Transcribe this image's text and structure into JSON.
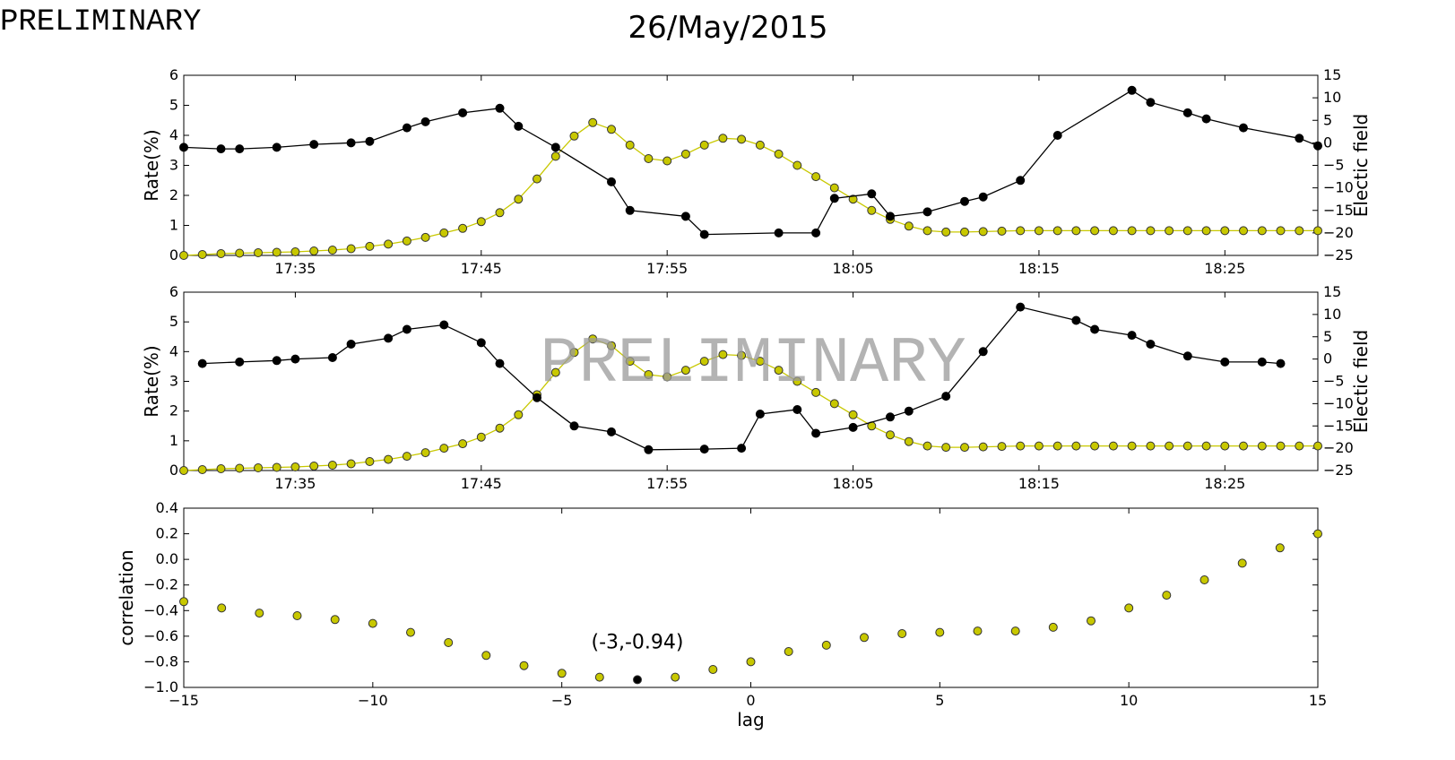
{
  "watermark": "PRELIMINARY",
  "figure_title": "26/May/2015",
  "colors": {
    "rate": "#000000",
    "efield": "#c8c800",
    "marker_edge": "#333333",
    "highlight": "#000000"
  },
  "chart_data": [
    {
      "type": "line",
      "panel": "top",
      "xlim": [
        "17:29",
        "18:30"
      ],
      "xticks": [
        "17:35",
        "17:45",
        "17:55",
        "18:05",
        "18:15",
        "18:25"
      ],
      "ylabel": "Rate(%)",
      "ylim": [
        0,
        6
      ],
      "yticks": [
        0,
        1,
        2,
        3,
        4,
        5,
        6
      ],
      "y2label": "Electic field",
      "y2lim": [
        -25,
        15
      ],
      "y2ticks": [
        -25,
        -20,
        -15,
        -10,
        -5,
        0,
        5,
        10,
        15
      ],
      "grid": false,
      "series": [
        {
          "axis": "left",
          "color": "#000000",
          "x": [
            "17:29",
            "17:31",
            "17:32",
            "17:34",
            "17:36",
            "17:38",
            "17:39",
            "17:41",
            "17:42",
            "17:44",
            "17:46",
            "17:47",
            "17:49",
            "17:52",
            "17:53",
            "17:56",
            "17:57",
            "18:01",
            "18:03",
            "18:04",
            "18:06",
            "18:07",
            "18:09",
            "18:11",
            "18:12",
            "18:14",
            "18:16",
            "18:20",
            "18:21",
            "18:23",
            "18:24",
            "18:26",
            "18:29",
            "18:30"
          ],
          "values": [
            3.6,
            3.55,
            3.55,
            3.6,
            3.7,
            3.75,
            3.8,
            4.25,
            4.45,
            4.75,
            4.9,
            4.3,
            3.6,
            2.45,
            1.5,
            1.3,
            0.7,
            0.75,
            0.75,
            1.9,
            2.05,
            1.3,
            1.45,
            1.8,
            1.95,
            2.5,
            4.0,
            5.5,
            5.1,
            4.75,
            4.55,
            4.25,
            3.9,
            3.65
          ]
        },
        {
          "axis": "right",
          "color": "#c8c800",
          "x": [
            "17:29",
            "17:30",
            "17:31",
            "17:32",
            "17:33",
            "17:34",
            "17:35",
            "17:36",
            "17:37",
            "17:38",
            "17:39",
            "17:40",
            "17:41",
            "17:42",
            "17:43",
            "17:44",
            "17:45",
            "17:46",
            "17:47",
            "17:48",
            "17:49",
            "17:50",
            "17:51",
            "17:52",
            "17:53",
            "17:54",
            "17:55",
            "17:56",
            "17:57",
            "17:58",
            "17:59",
            "18:00",
            "18:01",
            "18:02",
            "18:03",
            "18:04",
            "18:05",
            "18:06",
            "18:07",
            "18:08",
            "18:09",
            "18:10",
            "18:11",
            "18:12",
            "18:13",
            "18:14",
            "18:15",
            "18:16",
            "18:17",
            "18:18",
            "18:19",
            "18:20",
            "18:21",
            "18:22",
            "18:23",
            "18:24",
            "18:25",
            "18:26",
            "18:27",
            "18:28",
            "18:29",
            "18:30"
          ],
          "values": [
            -25,
            -24.8,
            -24.6,
            -24.5,
            -24.4,
            -24.3,
            -24.2,
            -24,
            -23.8,
            -23.5,
            -23,
            -22.5,
            -21.8,
            -21,
            -20,
            -19,
            -17.5,
            -15.5,
            -12.5,
            -8,
            -3,
            1.5,
            4.5,
            3,
            -0.5,
            -3.5,
            -4,
            -2.5,
            -0.5,
            1,
            0.8,
            -0.5,
            -2.5,
            -5,
            -7.5,
            -10,
            -12.5,
            -15,
            -17,
            -18.5,
            -19.5,
            -19.8,
            -19.8,
            -19.7,
            -19.6,
            -19.5,
            -19.5,
            -19.5,
            -19.5,
            -19.5,
            -19.5,
            -19.5,
            -19.5,
            -19.5,
            -19.5,
            -19.5,
            -19.5,
            -19.5,
            -19.5,
            -19.5,
            -19.5,
            -19.5
          ]
        }
      ]
    },
    {
      "type": "line",
      "panel": "middle",
      "xlim": [
        "17:29",
        "18:30"
      ],
      "xticks": [
        "17:35",
        "17:45",
        "17:55",
        "18:05",
        "18:15",
        "18:25"
      ],
      "ylabel": "Rate(%)",
      "ylim": [
        0,
        6
      ],
      "yticks": [
        0,
        1,
        2,
        3,
        4,
        5,
        6
      ],
      "y2label": "Electic field",
      "y2lim": [
        -25,
        15
      ],
      "y2ticks": [
        -25,
        -20,
        -15,
        -10,
        -5,
        0,
        5,
        10,
        15
      ],
      "grid": false,
      "series": [
        {
          "axis": "left",
          "color": "#000000",
          "x": [
            "17:30",
            "17:32",
            "17:34",
            "17:35",
            "17:37",
            "17:38",
            "17:40",
            "17:41",
            "17:43",
            "17:45",
            "17:46",
            "17:48",
            "17:50",
            "17:52",
            "17:54",
            "17:57",
            "17:59",
            "18:00",
            "18:02",
            "18:03",
            "18:05",
            "18:07",
            "18:08",
            "18:10",
            "18:12",
            "18:14",
            "18:17",
            "18:18",
            "18:20",
            "18:21",
            "18:23",
            "18:25",
            "18:27",
            "18:28"
          ],
          "values": [
            3.6,
            3.65,
            3.7,
            3.75,
            3.8,
            4.25,
            4.45,
            4.75,
            4.9,
            4.3,
            3.6,
            2.45,
            1.5,
            1.3,
            0.7,
            0.72,
            0.75,
            1.9,
            2.05,
            1.25,
            1.45,
            1.8,
            2.0,
            2.5,
            4.0,
            5.5,
            5.05,
            4.75,
            4.55,
            4.25,
            3.85,
            3.65,
            3.65,
            3.6
          ]
        },
        {
          "axis": "right",
          "color": "#c8c800",
          "x": [
            "17:29",
            "17:30",
            "17:31",
            "17:32",
            "17:33",
            "17:34",
            "17:35",
            "17:36",
            "17:37",
            "17:38",
            "17:39",
            "17:40",
            "17:41",
            "17:42",
            "17:43",
            "17:44",
            "17:45",
            "17:46",
            "17:47",
            "17:48",
            "17:49",
            "17:50",
            "17:51",
            "17:52",
            "17:53",
            "17:54",
            "17:55",
            "17:56",
            "17:57",
            "17:58",
            "17:59",
            "18:00",
            "18:01",
            "18:02",
            "18:03",
            "18:04",
            "18:05",
            "18:06",
            "18:07",
            "18:08",
            "18:09",
            "18:10",
            "18:11",
            "18:12",
            "18:13",
            "18:14",
            "18:15",
            "18:16",
            "18:17",
            "18:18",
            "18:19",
            "18:20",
            "18:21",
            "18:22",
            "18:23",
            "18:24",
            "18:25",
            "18:26",
            "18:27",
            "18:28",
            "18:29",
            "18:30"
          ],
          "values": [
            -25,
            -24.8,
            -24.6,
            -24.5,
            -24.4,
            -24.3,
            -24.2,
            -24,
            -23.8,
            -23.5,
            -23,
            -22.5,
            -21.8,
            -21,
            -20,
            -19,
            -17.5,
            -15.5,
            -12.5,
            -8,
            -3,
            1.5,
            4.5,
            3,
            -0.5,
            -3.5,
            -4,
            -2.5,
            -0.5,
            1,
            0.8,
            -0.5,
            -2.5,
            -5,
            -7.5,
            -10,
            -12.5,
            -15,
            -17,
            -18.5,
            -19.5,
            -19.8,
            -19.8,
            -19.7,
            -19.6,
            -19.5,
            -19.5,
            -19.5,
            -19.5,
            -19.5,
            -19.5,
            -19.5,
            -19.5,
            -19.5,
            -19.5,
            -19.5,
            -19.5,
            -19.5,
            -19.5,
            -19.5,
            -19.5,
            -19.5
          ]
        }
      ]
    },
    {
      "type": "scatter",
      "panel": "bottom",
      "xlabel": "lag",
      "ylabel": "correlation",
      "xlim": [
        -15,
        15
      ],
      "xticks": [
        -15,
        -10,
        -5,
        0,
        5,
        10,
        15
      ],
      "ylim": [
        -1.0,
        0.4
      ],
      "yticks": [
        -1.0,
        -0.8,
        -0.6,
        -0.4,
        -0.2,
        0.0,
        0.2,
        0.4
      ],
      "grid": false,
      "x": [
        -15,
        -14,
        -13,
        -12,
        -11,
        -10,
        -9,
        -8,
        -7,
        -6,
        -5,
        -4,
        -3,
        -2,
        -1,
        0,
        1,
        2,
        3,
        4,
        5,
        6,
        7,
        8,
        9,
        10,
        11,
        12,
        13,
        14,
        15
      ],
      "values": [
        -0.33,
        -0.38,
        -0.42,
        -0.44,
        -0.47,
        -0.5,
        -0.57,
        -0.65,
        -0.75,
        -0.83,
        -0.89,
        -0.92,
        -0.94,
        -0.92,
        -0.86,
        -0.8,
        -0.72,
        -0.67,
        -0.61,
        -0.58,
        -0.57,
        -0.56,
        -0.56,
        -0.53,
        -0.48,
        -0.38,
        -0.28,
        -0.16,
        -0.03,
        0.09,
        0.2
      ],
      "highlight": {
        "x": -3,
        "y": -0.94,
        "label": "(-3,-0.94)"
      }
    }
  ]
}
